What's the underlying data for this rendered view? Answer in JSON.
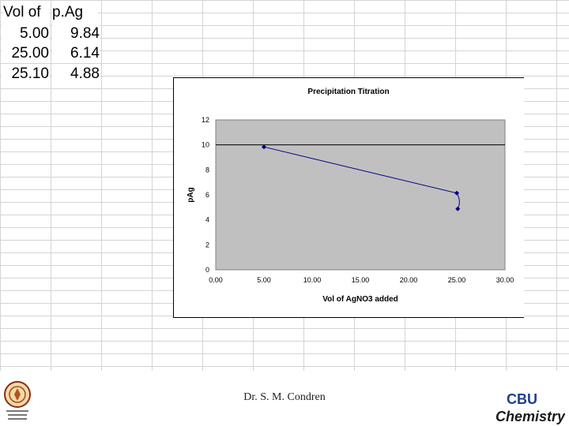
{
  "table": {
    "headers": [
      "Vol of",
      "p.Ag"
    ],
    "rows": [
      [
        "5.00",
        "9.84"
      ],
      [
        "25.00",
        "6.14"
      ],
      [
        "25.10",
        "4.88"
      ]
    ]
  },
  "chart_data": {
    "type": "scatter",
    "title": "Precipitation Titration",
    "xlabel": "Vol of AgNO3 added",
    "ylabel": "pAg",
    "xlim": [
      0,
      30
    ],
    "ylim": [
      0,
      12
    ],
    "x_ticks": [
      "0.00",
      "5.00",
      "10.00",
      "15.00",
      "20.00",
      "25.00",
      "30.00"
    ],
    "y_ticks": [
      "0",
      "2",
      "4",
      "6",
      "8",
      "10",
      "12"
    ],
    "series": [
      {
        "x": [
          5.0,
          25.0,
          25.1
        ],
        "y": [
          9.84,
          6.14,
          4.88
        ]
      }
    ],
    "reference_line_y": 10,
    "plot_background": "#c0c0c0",
    "series_color": "#000080",
    "grid": false,
    "legend": "none"
  },
  "footer": {
    "author": "Dr. S. M. Condren"
  },
  "logos": {
    "left": "university-seal-icon",
    "right": "CBU Chemistry"
  },
  "colors": {
    "plot_bg": "#c0c0c0",
    "series": "#000080",
    "logo_blue": "#1c3f8c"
  }
}
